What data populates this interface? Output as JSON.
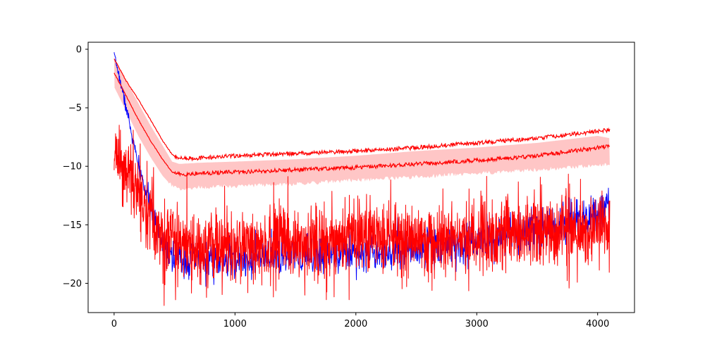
{
  "chart_data": {
    "type": "line",
    "title": "",
    "xlabel": "",
    "ylabel": "",
    "xlim": [
      -215,
      4305
    ],
    "ylim": [
      -22.5,
      0.6
    ],
    "grid": false,
    "legend": "none",
    "x_ticks": [
      {
        "value": 0,
        "label": "0"
      },
      {
        "value": 1000,
        "label": "1000"
      },
      {
        "value": 2000,
        "label": "2000"
      },
      {
        "value": 3000,
        "label": "3000"
      },
      {
        "value": 4000,
        "label": "4000"
      }
    ],
    "y_ticks": [
      {
        "value": 0,
        "label": "0"
      },
      {
        "value": -5,
        "label": "−5"
      },
      {
        "value": -10,
        "label": "−10"
      },
      {
        "value": -15,
        "label": "−15"
      },
      {
        "value": -20,
        "label": "−20"
      }
    ],
    "series": [
      {
        "role": "noisy-blue",
        "color": "#0000ff",
        "x": [
          0,
          100,
          200,
          300,
          400,
          500,
          600,
          800,
          1000,
          1200,
          1500,
          2000,
          2500,
          3000,
          3500,
          3800,
          4000,
          4100
        ],
        "center": [
          -0.4,
          -5.0,
          -10.0,
          -13.5,
          -16.5,
          -17.8,
          -18.0,
          -18.0,
          -18.0,
          -17.9,
          -17.7,
          -17.3,
          -17.0,
          -16.5,
          -15.5,
          -14.8,
          -14.2,
          -13.5
        ],
        "noise": [
          0.1,
          0.3,
          0.4,
          0.5,
          0.7,
          0.8,
          0.8,
          0.8,
          0.8,
          0.8,
          0.8,
          0.8,
          0.9,
          0.9,
          0.9,
          0.9,
          0.9,
          0.8
        ]
      },
      {
        "role": "noisy-red",
        "color": "#ff0000",
        "x": [
          0,
          100,
          200,
          300,
          400,
          500,
          700,
          1000,
          1500,
          2000,
          2500,
          3000,
          3500,
          4000,
          4100
        ],
        "center": [
          -9.0,
          -10.5,
          -12.5,
          -14.0,
          -15.8,
          -16.5,
          -16.8,
          -16.8,
          -16.6,
          -16.3,
          -16.2,
          -16.0,
          -15.8,
          -15.4,
          -15.0
        ],
        "noise": [
          1.2,
          1.4,
          1.5,
          1.6,
          1.7,
          1.5,
          1.5,
          1.5,
          1.5,
          1.5,
          1.5,
          1.5,
          1.6,
          1.6,
          1.6
        ]
      },
      {
        "role": "mean-line",
        "color": "#ff0000",
        "x": [
          0,
          100,
          200,
          300,
          400,
          480,
          540,
          700,
          1000,
          1500,
          2000,
          2500,
          3000,
          3500,
          4000,
          4100
        ],
        "y": [
          -2.0,
          -4.0,
          -6.0,
          -7.8,
          -9.4,
          -10.5,
          -10.7,
          -10.6,
          -10.5,
          -10.3,
          -10.1,
          -9.8,
          -9.5,
          -9.1,
          -8.4,
          -8.3
        ]
      },
      {
        "role": "upper-line",
        "color": "#ff0000",
        "x": [
          0,
          100,
          200,
          300,
          400,
          480,
          540,
          700,
          1000,
          1500,
          2000,
          2500,
          3000,
          3500,
          4000,
          4100
        ],
        "y": [
          -0.8,
          -2.7,
          -4.3,
          -6.0,
          -7.8,
          -9.0,
          -9.3,
          -9.3,
          -9.1,
          -8.9,
          -8.7,
          -8.4,
          -8.0,
          -7.6,
          -7.0,
          -6.9
        ]
      },
      {
        "role": "band",
        "color": "#ffc6c6",
        "x": [
          0,
          100,
          200,
          300,
          400,
          480,
          540,
          700,
          1000,
          1500,
          2000,
          2500,
          3000,
          3500,
          4000,
          4100
        ],
        "lower": [
          -3.2,
          -5.3,
          -7.4,
          -9.2,
          -10.8,
          -11.7,
          -11.9,
          -11.8,
          -11.7,
          -11.5,
          -11.2,
          -10.9,
          -10.6,
          -10.3,
          -9.9,
          -9.8
        ],
        "upper": [
          -0.8,
          -2.7,
          -4.6,
          -6.5,
          -8.2,
          -9.6,
          -9.8,
          -9.7,
          -9.6,
          -9.4,
          -9.1,
          -8.7,
          -8.4,
          -8.0,
          -7.4,
          -7.6
        ]
      }
    ]
  }
}
